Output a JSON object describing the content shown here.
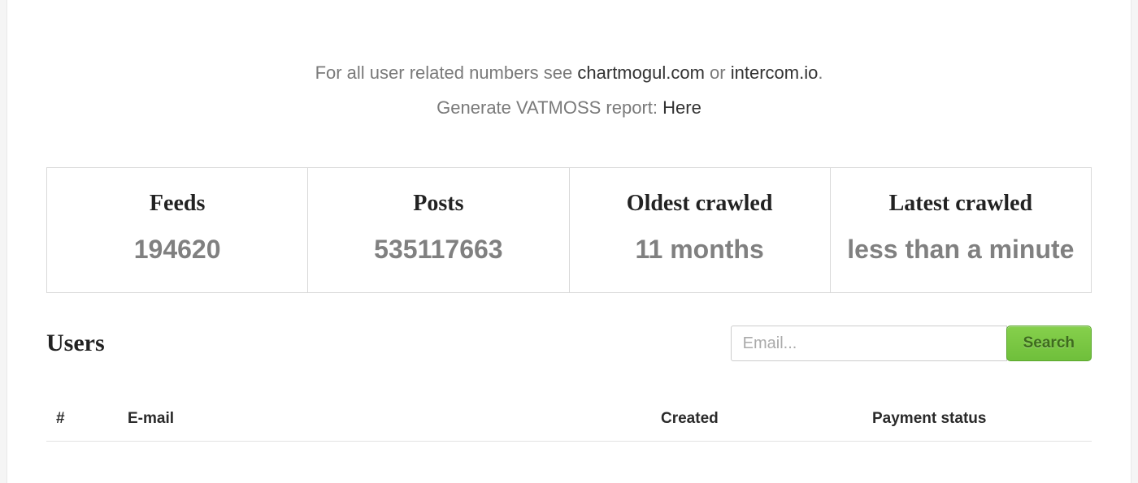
{
  "header": {
    "intro_prefix": "For all user related numbers see ",
    "link1": "chartmogul.com",
    "intro_mid": " or ",
    "link2": "intercom.io",
    "intro_suffix": ".",
    "line2_prefix": "Generate VATMOSS report: ",
    "line2_link": "Here"
  },
  "stats": {
    "feeds": {
      "title": "Feeds",
      "value": "194620"
    },
    "posts": {
      "title": "Posts",
      "value": "535117663"
    },
    "oldest": {
      "title": "Oldest crawled",
      "value": "11 months"
    },
    "latest": {
      "title": "Latest crawled",
      "value": "less than a minute"
    }
  },
  "users": {
    "title": "Users",
    "search_placeholder": "Email...",
    "search_button": "Search",
    "columns": {
      "idx": "#",
      "email": "E-mail",
      "created": "Created",
      "payment": "Payment status"
    }
  },
  "style": {
    "card_border": "#d9d9d9",
    "muted_text": "#7a7a7a",
    "stat_value_color": "#808080",
    "search_button_bg_top": "#86d04c",
    "search_button_bg_bottom": "#6fbf3b",
    "search_button_border": "#5aa62e"
  }
}
